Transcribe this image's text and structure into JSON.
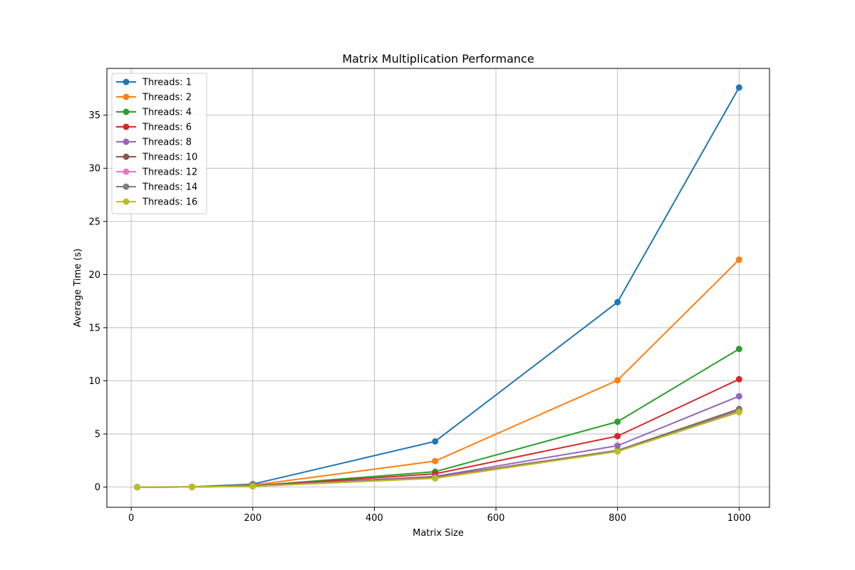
{
  "chart_data": {
    "type": "line",
    "title": "Matrix Multiplication Performance",
    "xlabel": "Matrix Size",
    "ylabel": "Average Time (s)",
    "xlim": [
      -40,
      1050
    ],
    "ylim": [
      -1.9,
      39.4
    ],
    "xticks": [
      0,
      200,
      400,
      600,
      800,
      1000
    ],
    "yticks": [
      0,
      5,
      10,
      15,
      20,
      25,
      30,
      35
    ],
    "grid": true,
    "legend_position": "upper-left",
    "x": [
      10,
      100,
      200,
      500,
      800,
      1000
    ],
    "series": [
      {
        "name": "Threads: 1",
        "color": "#1f77b4",
        "values": [
          0.0,
          0.03,
          0.28,
          4.3,
          17.4,
          37.6
        ]
      },
      {
        "name": "Threads: 2",
        "color": "#ff7f0e",
        "values": [
          0.0,
          0.02,
          0.18,
          2.45,
          10.05,
          21.4
        ]
      },
      {
        "name": "Threads: 4",
        "color": "#2ca02c",
        "values": [
          0.0,
          0.02,
          0.12,
          1.45,
          6.15,
          13.0
        ]
      },
      {
        "name": "Threads: 6",
        "color": "#d62728",
        "values": [
          0.0,
          0.02,
          0.1,
          1.25,
          4.8,
          10.15
        ]
      },
      {
        "name": "Threads: 8",
        "color": "#9467bd",
        "values": [
          0.0,
          0.02,
          0.09,
          1.0,
          3.9,
          8.55
        ]
      },
      {
        "name": "Threads: 10",
        "color": "#8c564b",
        "values": [
          0.0,
          0.02,
          0.08,
          0.95,
          3.45,
          7.35
        ]
      },
      {
        "name": "Threads: 12",
        "color": "#e377c2",
        "values": [
          0.0,
          0.02,
          0.08,
          0.88,
          3.4,
          7.15
        ]
      },
      {
        "name": "Threads: 14",
        "color": "#7f7f7f",
        "values": [
          0.0,
          0.02,
          0.08,
          0.85,
          3.4,
          7.25
        ]
      },
      {
        "name": "Threads: 16",
        "color": "#bcbd22",
        "values": [
          0.0,
          0.02,
          0.07,
          0.82,
          3.35,
          7.05
        ]
      }
    ]
  }
}
